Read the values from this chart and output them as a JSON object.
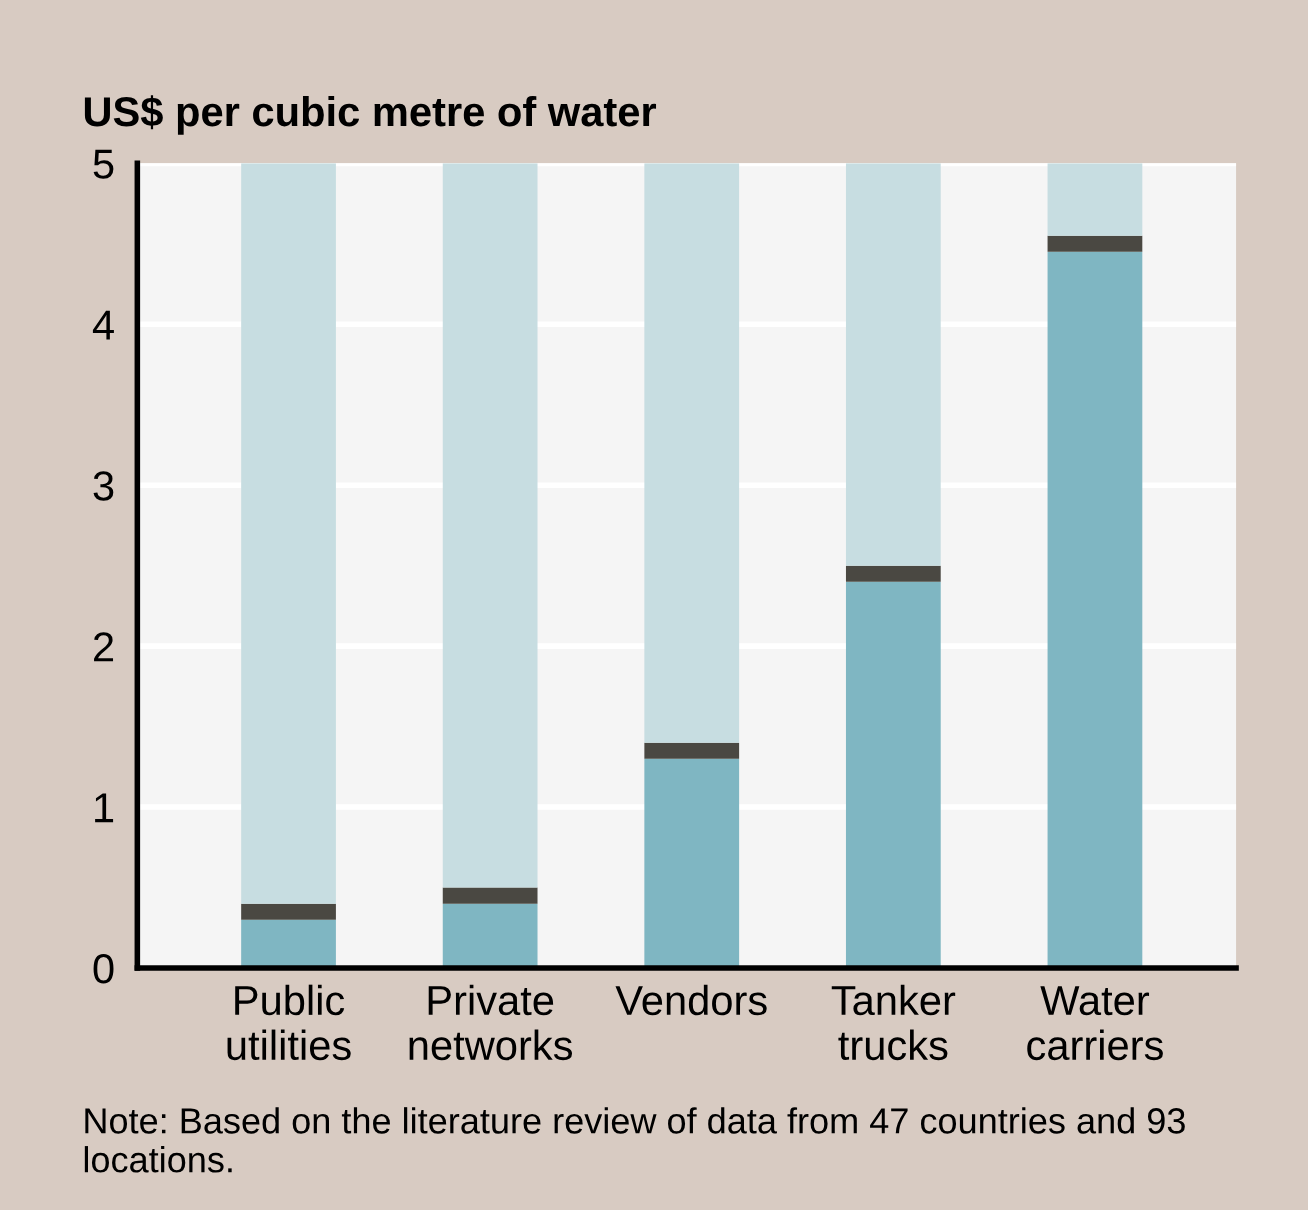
{
  "chart_data": {
    "type": "bar",
    "stacked": true,
    "title": "US$ per cubic metre of water",
    "categories": [
      "Public\nutilities",
      "Private\nnetworks",
      "Vendors",
      "Tanker\ntrucks",
      "Water\ncarriers"
    ],
    "series": [
      {
        "color": "#7fb6c2",
        "values": [
          0.3,
          0.4,
          1.3,
          2.4,
          4.45
        ]
      },
      {
        "color": "#4a4842",
        "values": [
          0.1,
          0.1,
          0.1,
          0.1,
          0.1
        ]
      },
      {
        "color": "#c7dde1",
        "values": [
          4.6,
          4.5,
          3.6,
          2.5,
          0.45
        ]
      }
    ],
    "ylim": [
      0,
      5
    ],
    "yticks": [
      0,
      1,
      2,
      3,
      4,
      5
    ],
    "grid": "y",
    "legend": false,
    "annotations": [
      "Note: Based on the literature review of data from 47 countries and 93 locations."
    ]
  }
}
